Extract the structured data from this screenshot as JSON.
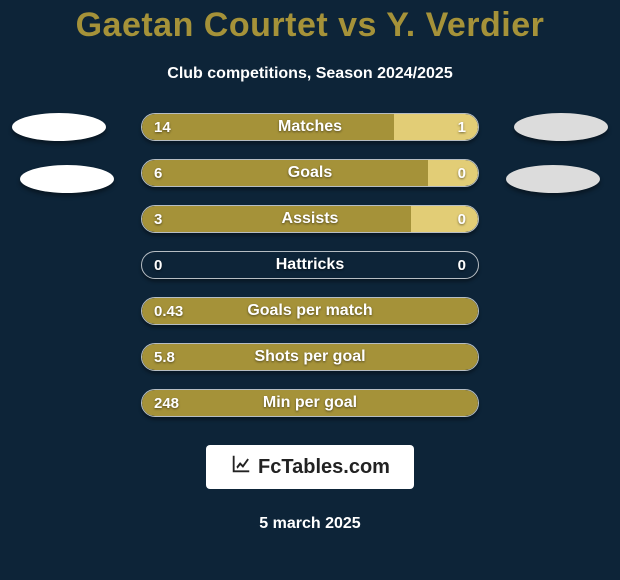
{
  "title_color": "#a59239",
  "background_color": "#0d2438",
  "title_parts": {
    "player_a": "Gaetan Courtet",
    "vs": " vs ",
    "player_b": "Y. Verdier"
  },
  "subtitle": "Club competitions, Season 2024/2025",
  "colors": {
    "player_a": "#a59239",
    "player_b": "#e2cd76",
    "ellipse_left": "#ffffff",
    "ellipse_right": "#dcdcdc"
  },
  "stats": [
    {
      "label": "Matches",
      "left_val": "14",
      "right_val": "1",
      "left_pct": 75,
      "right_pct": 25
    },
    {
      "label": "Goals",
      "left_val": "6",
      "right_val": "0",
      "left_pct": 85,
      "right_pct": 15
    },
    {
      "label": "Assists",
      "left_val": "3",
      "right_val": "0",
      "left_pct": 80,
      "right_pct": 20
    },
    {
      "label": "Hattricks",
      "left_val": "0",
      "right_val": "0",
      "left_pct": 0,
      "right_pct": 0
    },
    {
      "label": "Goals per match",
      "left_val": "0.43",
      "right_val": "",
      "left_pct": 100,
      "right_pct": 0
    },
    {
      "label": "Shots per goal",
      "left_val": "5.8",
      "right_val": "",
      "left_pct": 100,
      "right_pct": 0
    },
    {
      "label": "Min per goal",
      "left_val": "248",
      "right_val": "",
      "left_pct": 100,
      "right_pct": 0
    }
  ],
  "watermark_text": "FcTables.com",
  "date": "5 march 2025"
}
